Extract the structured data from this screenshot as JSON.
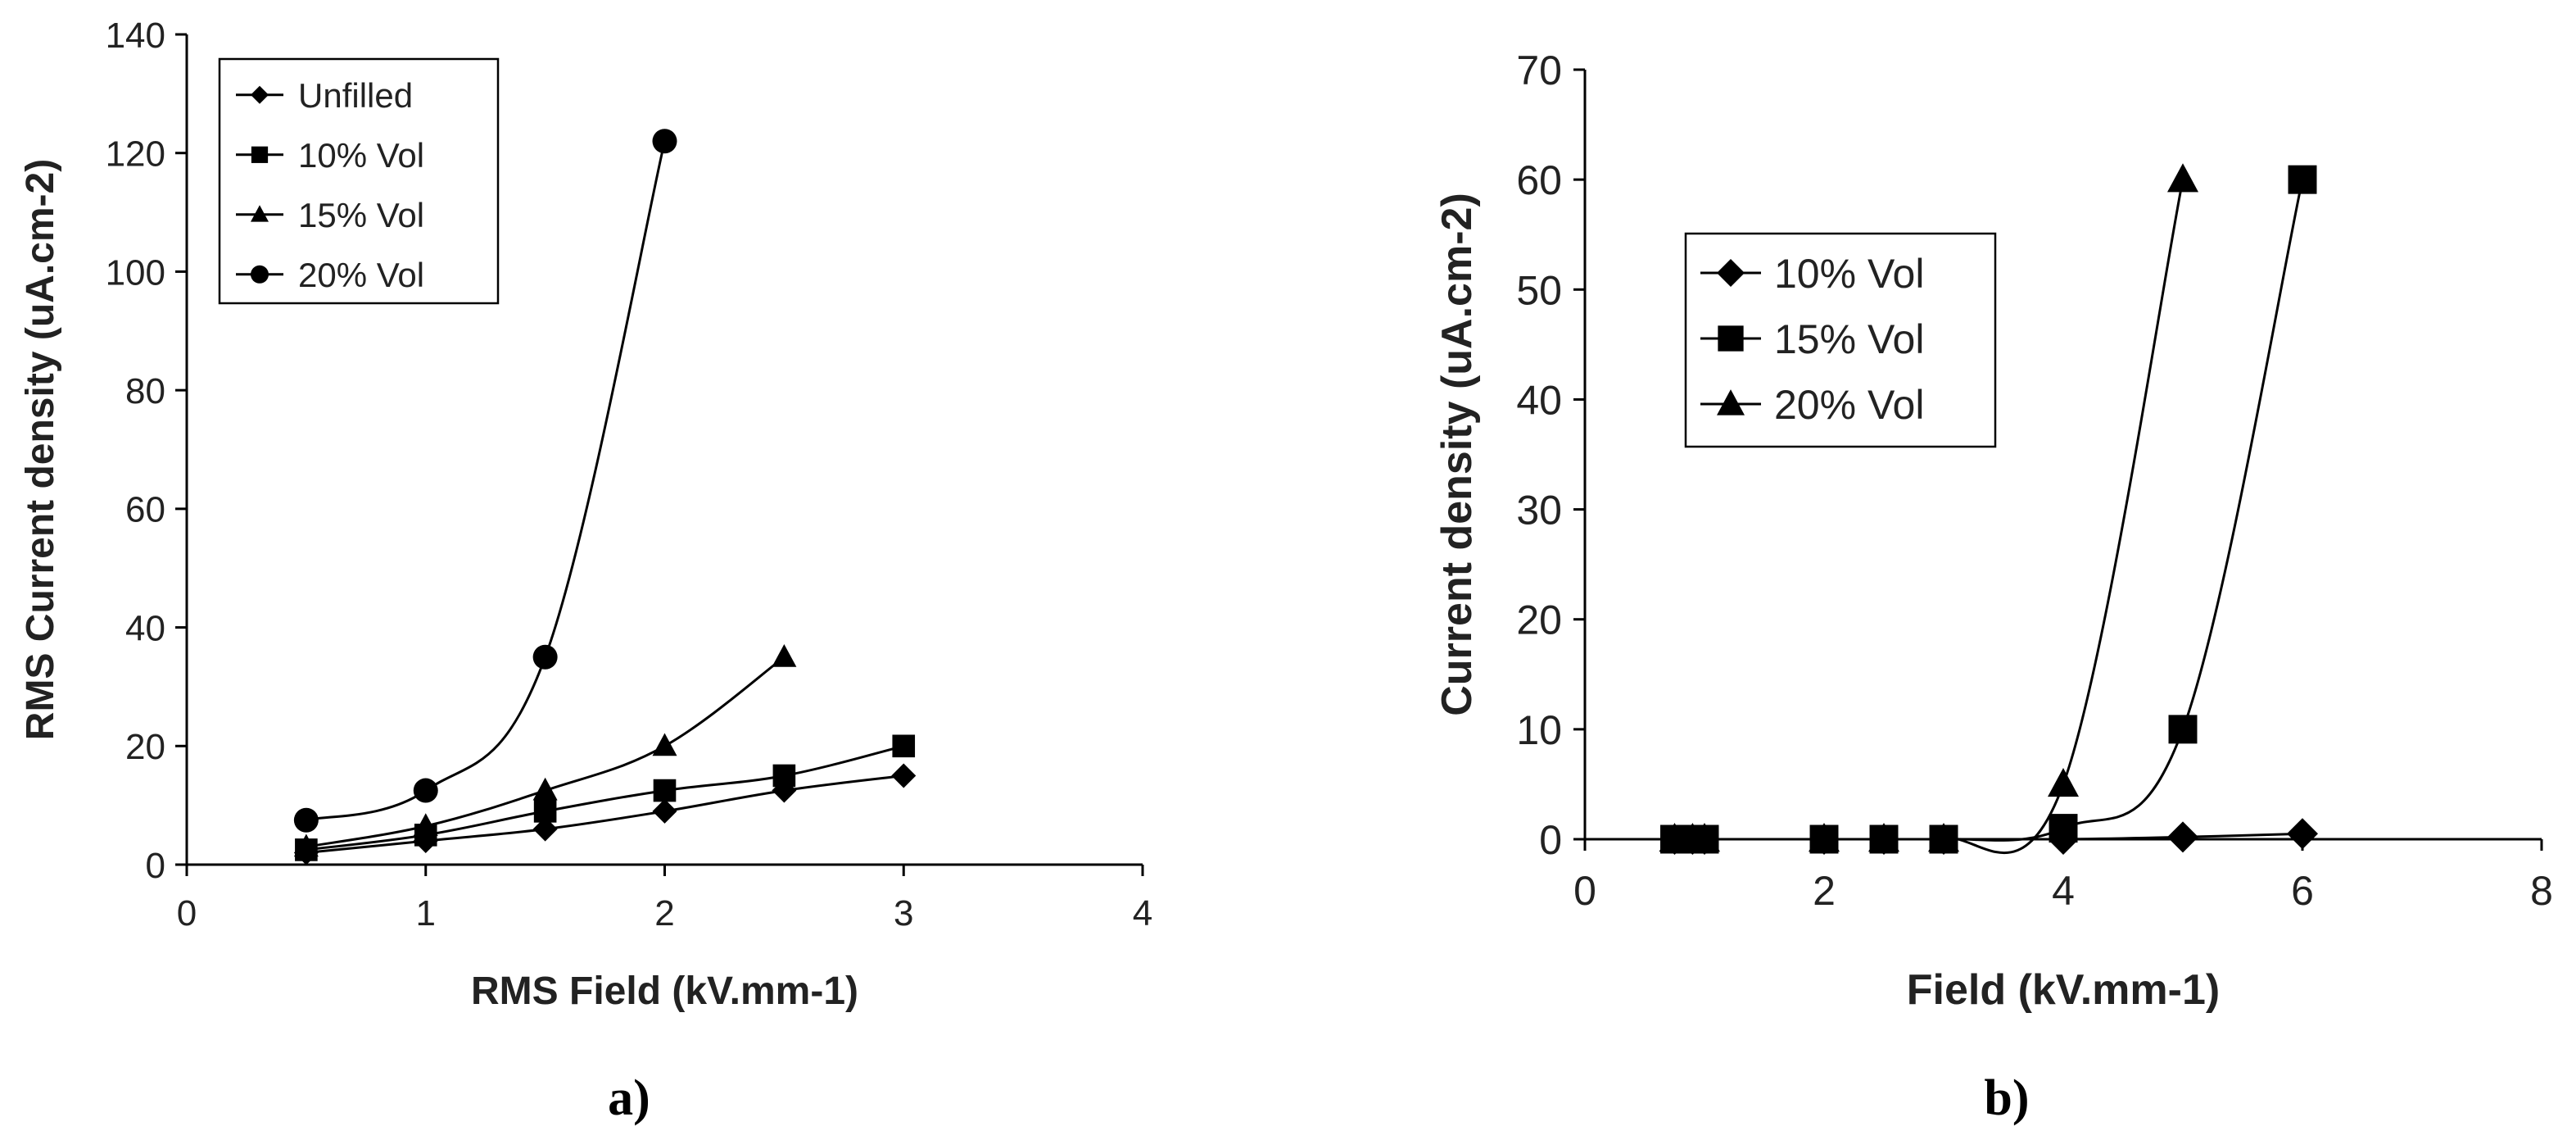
{
  "chart_data": [
    {
      "id": "a",
      "type": "line",
      "panel_label": "a)",
      "title": "",
      "xlabel": "RMS Field (kV.mm-1)",
      "ylabel": "RMS Current density (uA.cm-2)",
      "xlim": [
        0,
        4
      ],
      "ylim": [
        0,
        140
      ],
      "xticks": [
        0,
        1,
        2,
        3,
        4
      ],
      "yticks": [
        0,
        20,
        40,
        60,
        80,
        100,
        120,
        140
      ],
      "legend_position": "top-left",
      "series": [
        {
          "name": "Unfilled",
          "marker": "diamond",
          "x": [
            0.5,
            1,
            1.5,
            2,
            2.5,
            3
          ],
          "y": [
            2,
            4,
            6,
            9,
            12.5,
            15
          ]
        },
        {
          "name": "10% Vol",
          "marker": "square",
          "x": [
            0.5,
            1,
            1.5,
            2,
            2.5,
            3
          ],
          "y": [
            2.5,
            5,
            9,
            12.5,
            15,
            20
          ]
        },
        {
          "name": "15% Vol",
          "marker": "triangle",
          "x": [
            0.5,
            1,
            1.5,
            2,
            2.5
          ],
          "y": [
            3,
            6.5,
            12.5,
            20,
            35
          ]
        },
        {
          "name": "20% Vol",
          "marker": "circle",
          "x": [
            0.5,
            1,
            1.5,
            2
          ],
          "y": [
            7.5,
            12.5,
            35,
            122
          ]
        }
      ]
    },
    {
      "id": "b",
      "type": "line",
      "panel_label": "b)",
      "title": "",
      "xlabel": "Field (kV.mm-1)",
      "ylabel": "Current density (uA.cm-2)",
      "xlim": [
        0,
        8
      ],
      "ylim": [
        0,
        70
      ],
      "xticks": [
        0,
        2,
        4,
        6,
        8
      ],
      "yticks": [
        0,
        10,
        20,
        30,
        40,
        50,
        60,
        70
      ],
      "legend_position": "top-left",
      "series": [
        {
          "name": "10% Vol",
          "marker": "diamond",
          "x": [
            0.75,
            0.9,
            1,
            2,
            2.5,
            3,
            4,
            5,
            6
          ],
          "y": [
            0,
            0,
            0,
            0,
            0,
            0,
            0,
            0.2,
            0.5
          ]
        },
        {
          "name": "15% Vol",
          "marker": "square",
          "x": [
            0.75,
            0.9,
            1,
            2,
            2.5,
            3,
            4,
            5,
            6
          ],
          "y": [
            0,
            0,
            0,
            0,
            0,
            0,
            1,
            10,
            60
          ]
        },
        {
          "name": "20% Vol",
          "marker": "triangle",
          "x": [
            0.75,
            0.9,
            1,
            2,
            2.5,
            3,
            4,
            5
          ],
          "y": [
            0,
            0,
            0,
            0,
            0,
            0,
            5,
            60
          ]
        }
      ]
    }
  ]
}
